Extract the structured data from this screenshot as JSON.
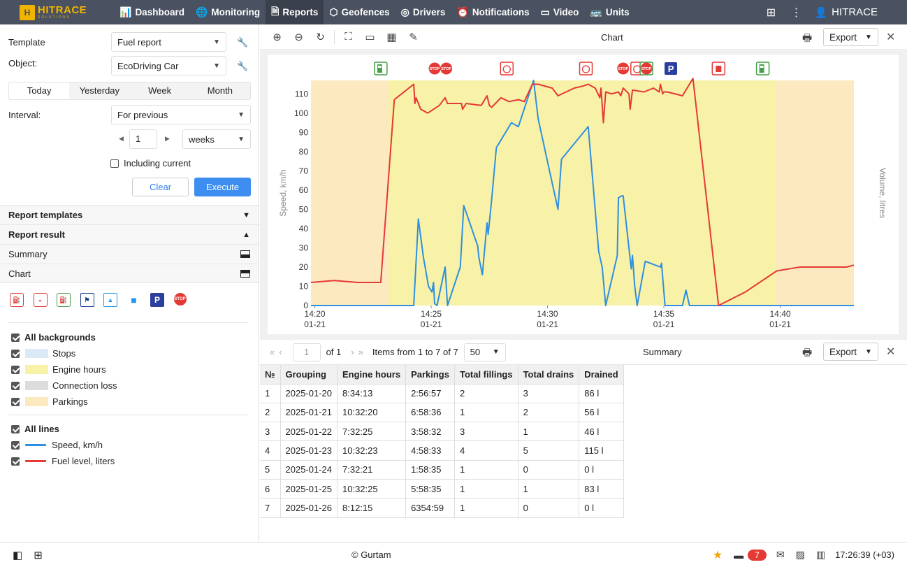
{
  "logo": {
    "mark": "H",
    "line1": "HITRACE",
    "line2": "SOLUTIONS"
  },
  "nav": [
    {
      "label": "Dashboard",
      "icon": "bar-chart-icon",
      "glyph": "📊",
      "active": false
    },
    {
      "label": "Monitoring",
      "icon": "globe-icon",
      "glyph": "🌐",
      "active": false
    },
    {
      "label": "Reports",
      "icon": "report-icon",
      "glyph": "🗎",
      "active": true
    },
    {
      "label": "Geofences",
      "icon": "geofence-icon",
      "glyph": "⬡",
      "active": false
    },
    {
      "label": "Drivers",
      "icon": "steering-wheel-icon",
      "glyph": "◎",
      "active": false
    },
    {
      "label": "Notifications",
      "icon": "alarm-icon",
      "glyph": "⏰",
      "active": false
    },
    {
      "label": "Video",
      "icon": "video-icon",
      "glyph": "▭",
      "active": false
    },
    {
      "label": "Units",
      "icon": "bus-icon",
      "glyph": "🚌",
      "active": false
    }
  ],
  "top_right": {
    "apps_glyph": "⊞",
    "menu_glyph": "⋮",
    "user_glyph": "👤",
    "user": "HITRACE"
  },
  "form": {
    "template_label": "Template",
    "template_value": "Fuel report",
    "object_label": "Object:",
    "object_value": "EcoDriving Car",
    "periods": [
      "Today",
      "Yesterday",
      "Week",
      "Month"
    ],
    "interval_label": "Interval:",
    "interval_value": "For previous",
    "count_value": "1",
    "unit_value": "weeks",
    "including_current": "Including current",
    "clear_label": "Clear",
    "execute_label": "Execute"
  },
  "sections": {
    "templates": "Report templates",
    "result": "Report result",
    "summary": "Summary",
    "chart": "Chart"
  },
  "event_icons": [
    {
      "name": "fuel-filling-icon",
      "cls": "fill",
      "glyph": "⛽"
    },
    {
      "name": "fuel-drain-icon",
      "cls": "drain",
      "glyph": "◒"
    },
    {
      "name": "fuel-station-icon",
      "cls": "station",
      "glyph": "⛽"
    },
    {
      "name": "flag-icon",
      "cls": "flag",
      "glyph": "⚑"
    },
    {
      "name": "image-icon",
      "cls": "image",
      "glyph": "▲"
    },
    {
      "name": "video-camera-icon",
      "cls": "video",
      "glyph": "■"
    },
    {
      "name": "parking-icon",
      "cls": "park",
      "glyph": "P"
    },
    {
      "name": "stop-icon",
      "cls": "stop",
      "glyph": "STOP"
    }
  ],
  "legend": {
    "all_backgrounds": "All backgrounds",
    "backgrounds": [
      {
        "label": "Stops",
        "color": "#dceaf7"
      },
      {
        "label": "Engine hours",
        "color": "#f7f2a8"
      },
      {
        "label": "Connection loss",
        "color": "#dcdcdc"
      },
      {
        "label": "Parkings",
        "color": "#fce9bf"
      }
    ],
    "all_lines": "All lines",
    "lines": [
      {
        "label": "Speed, km/h",
        "color": "#2f8fe0"
      },
      {
        "label": "Fuel level, liters",
        "color": "#e53935"
      }
    ]
  },
  "chart_panel": {
    "title": "Chart",
    "export_label": "Export"
  },
  "chart_data": {
    "type": "line",
    "ylabel": "Speed, km/h",
    "y2label": "Volume, litres",
    "ylim": [
      0,
      117
    ],
    "yticks": [
      0,
      10,
      20,
      30,
      40,
      50,
      60,
      70,
      80,
      90,
      100,
      110
    ],
    "xlim": [
      "14:19:50",
      "14:43:10"
    ],
    "xticks": [
      {
        "t": "14:20:00",
        "time": "14:20",
        "date": "01-21"
      },
      {
        "t": "14:25:00",
        "time": "14:25",
        "date": "01-21"
      },
      {
        "t": "14:30:00",
        "time": "14:30",
        "date": "01-21"
      },
      {
        "t": "14:35:00",
        "time": "14:35",
        "date": "01-21"
      },
      {
        "t": "14:40:00",
        "time": "14:40",
        "date": "01-21"
      }
    ],
    "backgrounds": [
      {
        "type": "Parkings",
        "from": "14:19:50",
        "to": "14:23:10",
        "color": "#fce9bf"
      },
      {
        "type": "Engine hours",
        "from": "14:23:10",
        "to": "14:39:50",
        "color": "#f7f2a8"
      },
      {
        "type": "Parkings",
        "from": "14:39:50",
        "to": "14:43:10",
        "color": "#fce9bf"
      }
    ],
    "series": [
      {
        "name": "Speed, km/h",
        "color": "#2f8fe0",
        "points": [
          [
            "14:19:50",
            0
          ],
          [
            "14:24:15",
            0
          ],
          [
            "14:24:27",
            45
          ],
          [
            "14:24:40",
            25
          ],
          [
            "14:24:53",
            10
          ],
          [
            "14:25:02",
            7
          ],
          [
            "14:25:06",
            12
          ],
          [
            "14:25:09",
            1
          ],
          [
            "14:25:15",
            0
          ],
          [
            "14:25:36",
            20
          ],
          [
            "14:25:42",
            0
          ],
          [
            "14:26:15",
            20
          ],
          [
            "14:26:24",
            52
          ],
          [
            "14:27:00",
            31
          ],
          [
            "14:27:03",
            25
          ],
          [
            "14:27:12",
            16
          ],
          [
            "14:27:24",
            43
          ],
          [
            "14:27:27",
            37
          ],
          [
            "14:27:36",
            55
          ],
          [
            "14:27:48",
            82
          ],
          [
            "14:28:27",
            95
          ],
          [
            "14:28:45",
            93
          ],
          [
            "14:29:24",
            117
          ],
          [
            "14:29:36",
            97
          ],
          [
            "14:30:03",
            72
          ],
          [
            "14:30:27",
            50
          ],
          [
            "14:30:36",
            76
          ],
          [
            "14:31:45",
            93
          ],
          [
            "14:32:12",
            28
          ],
          [
            "14:32:21",
            20
          ],
          [
            "14:32:30",
            0
          ],
          [
            "14:33:00",
            26
          ],
          [
            "14:33:03",
            56
          ],
          [
            "14:33:12",
            57
          ],
          [
            "14:33:15",
            57
          ],
          [
            "14:33:36",
            19
          ],
          [
            "14:33:39",
            26
          ],
          [
            "14:33:45",
            10
          ],
          [
            "14:33:51",
            0
          ],
          [
            "14:34:12",
            23
          ],
          [
            "14:34:51",
            20
          ],
          [
            "14:34:54",
            22
          ],
          [
            "14:35:03",
            0
          ],
          [
            "14:35:48",
            0
          ],
          [
            "14:35:57",
            8
          ],
          [
            "14:36:06",
            0
          ],
          [
            "14:43:10",
            0
          ]
        ]
      },
      {
        "name": "Fuel level, liters",
        "color": "#e53935",
        "points": [
          [
            "14:19:50",
            12
          ],
          [
            "14:20:50",
            13
          ],
          [
            "14:21:50",
            12
          ],
          [
            "14:22:50",
            12
          ],
          [
            "14:23:25",
            107
          ],
          [
            "14:24:15",
            115
          ],
          [
            "14:24:18",
            105
          ],
          [
            "14:24:21",
            108
          ],
          [
            "14:24:33",
            102
          ],
          [
            "14:24:51",
            100
          ],
          [
            "14:25:21",
            104
          ],
          [
            "14:25:36",
            108
          ],
          [
            "14:25:42",
            105
          ],
          [
            "14:26:09",
            105
          ],
          [
            "14:26:18",
            105
          ],
          [
            "14:26:21",
            102
          ],
          [
            "14:26:30",
            105
          ],
          [
            "14:27:09",
            104
          ],
          [
            "14:27:24",
            109
          ],
          [
            "14:27:30",
            104
          ],
          [
            "14:27:36",
            103
          ],
          [
            "14:28:00",
            108
          ],
          [
            "14:28:21",
            106
          ],
          [
            "14:28:45",
            107
          ],
          [
            "14:29:00",
            106
          ],
          [
            "14:29:21",
            115
          ],
          [
            "14:29:36",
            115
          ],
          [
            "14:30:12",
            113
          ],
          [
            "14:30:27",
            109
          ],
          [
            "14:31:09",
            113
          ],
          [
            "14:31:30",
            114
          ],
          [
            "14:31:45",
            115
          ],
          [
            "14:32:03",
            113
          ],
          [
            "14:32:15",
            108
          ],
          [
            "14:32:18",
            113
          ],
          [
            "14:32:24",
            95
          ],
          [
            "14:32:30",
            111
          ],
          [
            "14:32:45",
            110
          ],
          [
            "14:33:03",
            111
          ],
          [
            "14:33:09",
            109
          ],
          [
            "14:33:15",
            113
          ],
          [
            "14:33:30",
            110
          ],
          [
            "14:33:33",
            102
          ],
          [
            "14:33:39",
            112
          ],
          [
            "14:34:09",
            111
          ],
          [
            "14:34:33",
            113
          ],
          [
            "14:34:48",
            111
          ],
          [
            "14:34:51",
            115
          ],
          [
            "14:34:57",
            110
          ],
          [
            "14:35:00",
            111
          ],
          [
            "14:35:09",
            111
          ],
          [
            "14:35:48",
            109
          ],
          [
            "14:36:15",
            118
          ],
          [
            "14:37:21",
            0
          ],
          [
            "14:38:30",
            7
          ],
          [
            "14:39:51",
            18
          ],
          [
            "14:40:51",
            20
          ],
          [
            "14:42:51",
            20
          ],
          [
            "14:43:10",
            21
          ]
        ]
      }
    ],
    "events": [
      {
        "t": "14:22:50",
        "kind": "station"
      },
      {
        "t": "14:25:09",
        "kind": "stop"
      },
      {
        "t": "14:25:39",
        "kind": "stop"
      },
      {
        "t": "14:28:15",
        "kind": "drain"
      },
      {
        "t": "14:31:39",
        "kind": "drain"
      },
      {
        "t": "14:33:15",
        "kind": "stop"
      },
      {
        "t": "14:33:51",
        "kind": "drain"
      },
      {
        "t": "14:34:15",
        "kind": "station"
      },
      {
        "t": "14:34:15",
        "kind": "stop"
      },
      {
        "t": "14:35:18",
        "kind": "park"
      },
      {
        "t": "14:37:21",
        "kind": "fill"
      },
      {
        "t": "14:39:15",
        "kind": "station"
      }
    ]
  },
  "summary": {
    "title": "Summary",
    "export_label": "Export",
    "page_value": "1",
    "page_of": "of 1",
    "items_text": "Items from 1 to 7 of 7",
    "page_size": "50",
    "columns": [
      "№",
      "Grouping",
      "Engine hours",
      "Parkings",
      "Total fillings",
      "Total drains",
      "Drained"
    ],
    "rows": [
      [
        "1",
        "2025-01-20",
        "8:34:13",
        "2:56:57",
        "2",
        "3",
        "86 l"
      ],
      [
        "2",
        "2025-01-21",
        "10:32:20",
        "6:58:36",
        "1",
        "2",
        "56 l"
      ],
      [
        "3",
        "2025-01-22",
        "7:32:25",
        "3:58:32",
        "3",
        "1",
        "46 l"
      ],
      [
        "4",
        "2025-01-23",
        "10:32:23",
        "4:58:33",
        "4",
        "5",
        "115 l"
      ],
      [
        "5",
        "2025-01-24",
        "7:32:21",
        "1:58:35",
        "1",
        "0",
        "0 l"
      ],
      [
        "6",
        "2025-01-25",
        "10:32:25",
        "5:58:35",
        "1",
        "1",
        "83 l"
      ],
      [
        "7",
        "2025-01-26",
        "8:12:15",
        "6354:59",
        "1",
        "0",
        "0 l"
      ]
    ]
  },
  "footer": {
    "copyright": "© Gurtam",
    "badge": "7",
    "clock": "17:26:39 (+03)"
  }
}
